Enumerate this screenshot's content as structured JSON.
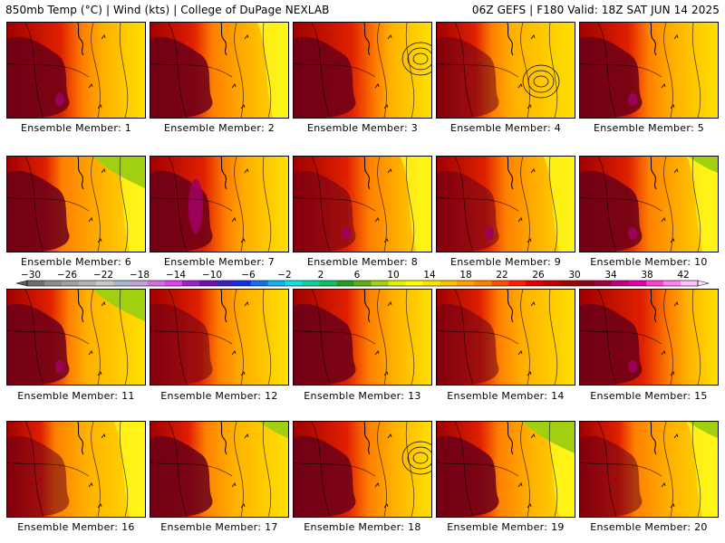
{
  "header": {
    "left": "850mb Temp (°C) | Wind (kts) | College of DuPage NEXLAB",
    "right": "06Z GEFS | F180 Valid: 18Z SAT JUN 14 2025"
  },
  "colorbar": {
    "labels": [
      "−30",
      "−26",
      "−22",
      "−18",
      "−14",
      "−10",
      "−6",
      "−2",
      "2",
      "6",
      "10",
      "14",
      "18",
      "22",
      "26",
      "30",
      "34",
      "38",
      "42"
    ],
    "colors": [
      "#6e6e6e",
      "#8c8c8c",
      "#a0a0a0",
      "#b4b4b4",
      "#c8c8c8",
      "#a8b8d0",
      "#c0a0d8",
      "#d070e0",
      "#e040f0",
      "#a020d0",
      "#7010b0",
      "#4020c0",
      "#1030e0",
      "#1070f0",
      "#10b0f0",
      "#10e0e0",
      "#10d0a0",
      "#10c060",
      "#20a020",
      "#60b010",
      "#a0d010",
      "#e0f000",
      "#ffff00",
      "#ffe000",
      "#ffc000",
      "#ffa000",
      "#ff8000",
      "#ff5000",
      "#ff2000",
      "#e00000",
      "#c00000",
      "#a00000",
      "#900018",
      "#a00040",
      "#c00080",
      "#e000b0",
      "#ff40d0",
      "#ff80f0",
      "#ffc0ff"
    ]
  },
  "members": [
    {
      "label": "Ensemble Member: 1"
    },
    {
      "label": "Ensemble Member: 2"
    },
    {
      "label": "Ensemble Member: 3"
    },
    {
      "label": "Ensemble Member: 4"
    },
    {
      "label": "Ensemble Member: 5"
    },
    {
      "label": "Ensemble Member: 6"
    },
    {
      "label": "Ensemble Member: 7"
    },
    {
      "label": "Ensemble Member: 8"
    },
    {
      "label": "Ensemble Member: 9"
    },
    {
      "label": "Ensemble Member: 10"
    },
    {
      "label": "Ensemble Member: 11"
    },
    {
      "label": "Ensemble Member: 12"
    },
    {
      "label": "Ensemble Member: 13"
    },
    {
      "label": "Ensemble Member: 14"
    },
    {
      "label": "Ensemble Member: 15"
    },
    {
      "label": "Ensemble Member: 16"
    },
    {
      "label": "Ensemble Member: 17"
    },
    {
      "label": "Ensemble Member: 18"
    },
    {
      "label": "Ensemble Member: 19"
    },
    {
      "label": "Ensemble Member: 20"
    }
  ],
  "palette": {
    "hot": "#a00000",
    "very_hot": "#6a0018",
    "extreme": "#a00060",
    "warm": "#e02000",
    "orange": "#ff8000",
    "light_orange": "#ffb000",
    "yellow": "#ffe000",
    "pale_yellow": "#ffff20",
    "green": "#a0d010",
    "dark_green": "#60b010"
  }
}
